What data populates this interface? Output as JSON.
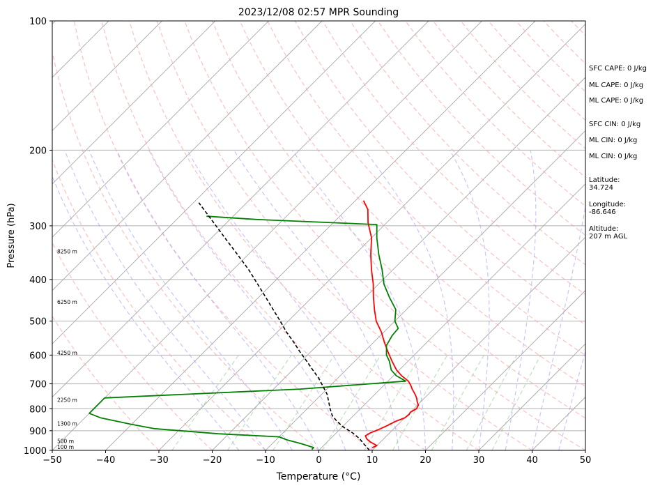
{
  "chart_data": {
    "type": "line",
    "title": "2023/12/08 02:57 MPR Sounding",
    "xlabel": "Temperature (°C)",
    "ylabel": "Pressure (hPa)",
    "xlim": [
      -50,
      50
    ],
    "ylim": [
      1000,
      100
    ],
    "y_scale": "log",
    "skew": "skew-T log-p",
    "x_ticks": [
      -50,
      -40,
      -30,
      -20,
      -10,
      0,
      10,
      20,
      30,
      40,
      50
    ],
    "y_ticks": [
      100,
      200,
      300,
      400,
      500,
      600,
      700,
      800,
      900,
      1000
    ],
    "height_labels": [
      {
        "p": 985,
        "text": "100 m"
      },
      {
        "p": 955,
        "text": "500 m"
      },
      {
        "p": 870,
        "text": "1300 m"
      },
      {
        "p": 765,
        "text": "2250 m"
      },
      {
        "p": 595,
        "text": "4250 m"
      },
      {
        "p": 453,
        "text": "6250 m"
      },
      {
        "p": 345,
        "text": "8250 m"
      }
    ],
    "series": [
      {
        "color": "#ff0000",
        "points": [
          [
            985,
            9.5
          ],
          [
            975,
            10
          ],
          [
            955,
            8
          ],
          [
            940,
            6.8
          ],
          [
            925,
            6
          ],
          [
            910,
            6.4
          ],
          [
            895,
            7.3
          ],
          [
            875,
            8.2
          ],
          [
            855,
            9
          ],
          [
            840,
            10
          ],
          [
            825,
            10.2
          ],
          [
            815,
            10
          ],
          [
            800,
            10.5
          ],
          [
            785,
            10.2
          ],
          [
            770,
            9.3
          ],
          [
            755,
            8.5
          ],
          [
            740,
            7.5
          ],
          [
            720,
            6
          ],
          [
            705,
            5
          ],
          [
            690,
            3.8
          ],
          [
            670,
            1.5
          ],
          [
            650,
            -0.5
          ],
          [
            620,
            -3
          ],
          [
            590,
            -5.5
          ],
          [
            560,
            -8
          ],
          [
            530,
            -10.5
          ],
          [
            500,
            -13.5
          ],
          [
            470,
            -16
          ],
          [
            440,
            -18.5
          ],
          [
            410,
            -21
          ],
          [
            380,
            -24
          ],
          [
            350,
            -27
          ],
          [
            320,
            -30
          ],
          [
            295,
            -33.5
          ],
          [
            275,
            -36
          ],
          [
            262,
            -38.5
          ]
        ]
      },
      {
        "color": "#008000",
        "points": [
          [
            995,
            -1.5
          ],
          [
            985,
            -1.5
          ],
          [
            965,
            -4.5
          ],
          [
            945,
            -8
          ],
          [
            930,
            -10
          ],
          [
            915,
            -22
          ],
          [
            890,
            -35
          ],
          [
            870,
            -40
          ],
          [
            840,
            -47
          ],
          [
            820,
            -50
          ],
          [
            755,
            -50
          ],
          [
            720,
            -15
          ],
          [
            690,
            3.3
          ],
          [
            670,
            0.5
          ],
          [
            650,
            -1.5
          ],
          [
            620,
            -3.5
          ],
          [
            600,
            -5.2
          ],
          [
            570,
            -7
          ],
          [
            540,
            -7.8
          ],
          [
            520,
            -8
          ],
          [
            500,
            -10
          ],
          [
            470,
            -12
          ],
          [
            440,
            -15.5
          ],
          [
            410,
            -19
          ],
          [
            380,
            -22
          ],
          [
            350,
            -25.5
          ],
          [
            320,
            -29
          ],
          [
            298,
            -31.5
          ],
          [
            290,
            -55
          ],
          [
            285,
            -65
          ]
        ]
      },
      {
        "color": "#000000",
        "dashed": true,
        "points": [
          [
            1000,
            9.5
          ],
          [
            970,
            7.5
          ],
          [
            940,
            5.5
          ],
          [
            910,
            3
          ],
          [
            880,
            0
          ],
          [
            850,
            -2.5
          ],
          [
            830,
            -4
          ],
          [
            800,
            -5.7
          ],
          [
            770,
            -7.3
          ],
          [
            740,
            -9
          ],
          [
            710,
            -11.2
          ],
          [
            680,
            -13.5
          ],
          [
            650,
            -16.2
          ],
          [
            620,
            -19
          ],
          [
            590,
            -22
          ],
          [
            560,
            -25
          ],
          [
            530,
            -28.3
          ],
          [
            500,
            -31.5
          ],
          [
            470,
            -35
          ],
          [
            440,
            -38.7
          ],
          [
            410,
            -42.7
          ],
          [
            380,
            -47
          ],
          [
            350,
            -52
          ],
          [
            320,
            -57.5
          ],
          [
            290,
            -63.5
          ],
          [
            265,
            -69
          ]
        ]
      }
    ],
    "grid": true
  },
  "side_panel": {
    "sfc_cape": "SFC CAPE: 0 J/kg",
    "ml_cape_1": "ML CAPE: 0 J/kg",
    "ml_cape_2": "ML CAPE: 0 J/kg",
    "sfc_cin": "SFC CIN: 0 J/kg",
    "ml_cin_1": "ML CIN: 0 J/kg",
    "ml_cin_2": "ML CIN: 0 J/kg",
    "latitude": "Latitude:\n34.724",
    "longitude": "Longitude:\n-86.646",
    "altitude": "Altitude:\n207 m AGL"
  }
}
